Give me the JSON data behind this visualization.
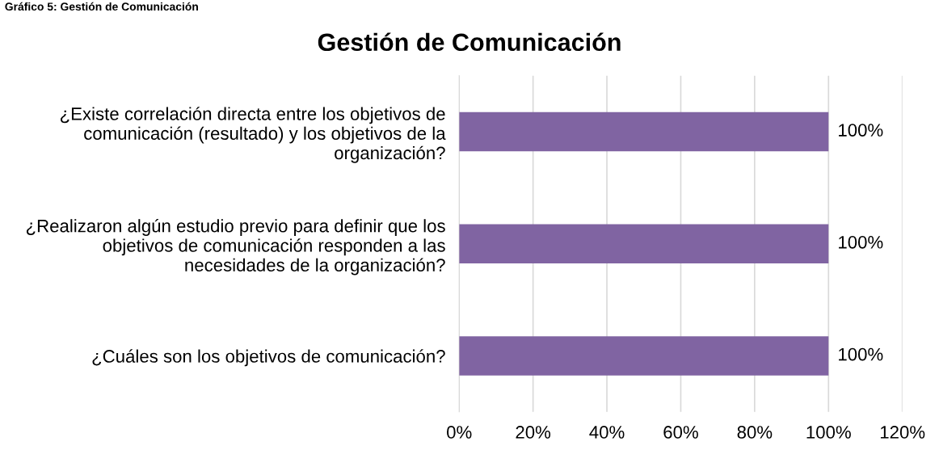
{
  "chart_data": {
    "type": "bar",
    "orientation": "horizontal",
    "title": "Gestión de Comunicación",
    "annotations": [
      "Gráfico 5: Gestión de Comunicación"
    ],
    "categories": [
      "¿Existe correlación directa entre los objetivos de comunicación (resultado) y los objetivos de la organización?",
      "¿Realizaron algún estudio previo para definir que los objetivos de comunicación responden a las necesidades de la organización?",
      "¿Cuáles son los objetivos de comunicación?"
    ],
    "values": [
      100,
      100,
      100
    ],
    "value_labels": [
      "100%",
      "100%",
      "100%"
    ],
    "color": "#8064a2",
    "xlim": [
      0,
      120
    ],
    "xticks": [
      {
        "value": 0,
        "label": "0%"
      },
      {
        "value": 20,
        "label": "20%"
      },
      {
        "value": 40,
        "label": "40%"
      },
      {
        "value": 60,
        "label": "60%"
      },
      {
        "value": 80,
        "label": "80%"
      },
      {
        "value": 100,
        "label": "100%"
      },
      {
        "value": 120,
        "label": "120%"
      }
    ],
    "grid": "x",
    "legend": false
  }
}
